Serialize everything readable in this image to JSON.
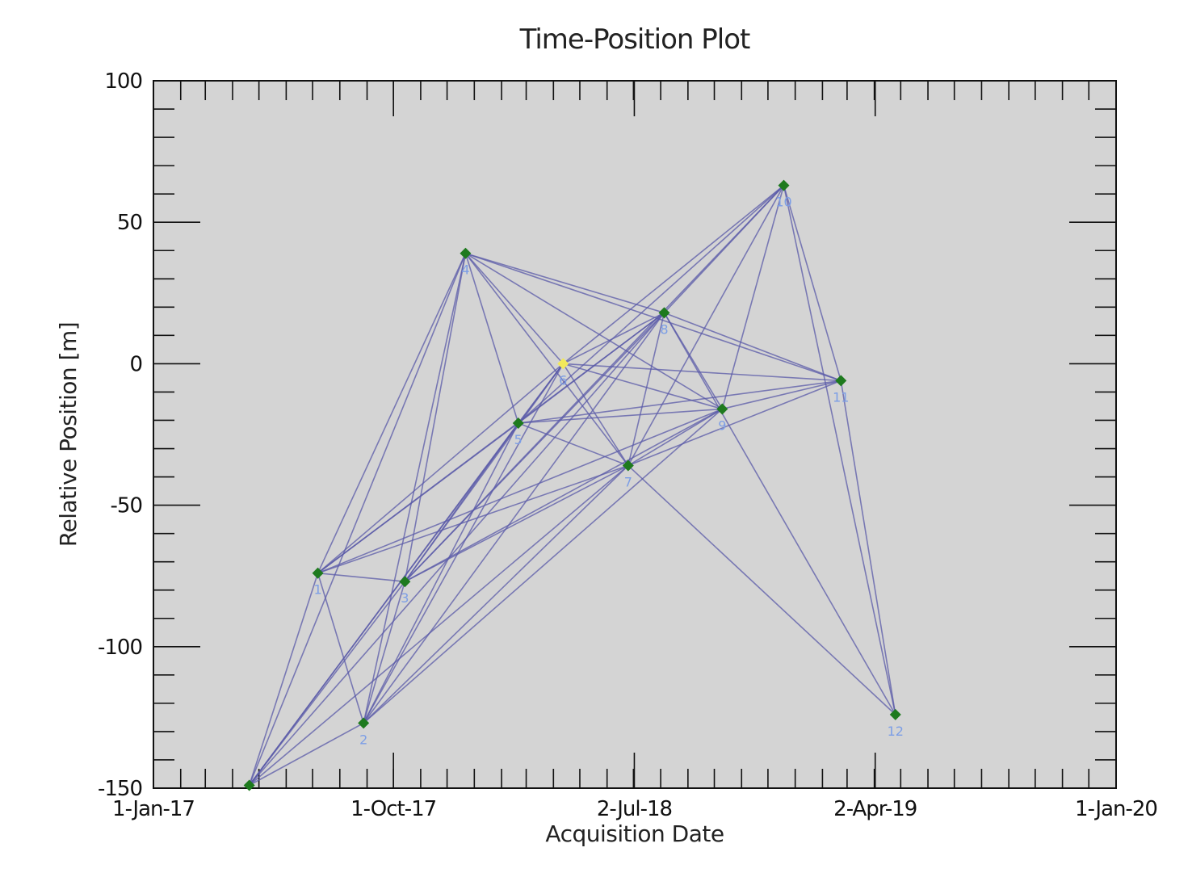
{
  "chart_data": {
    "type": "scatter",
    "title": "Time-Position Plot",
    "xlabel": "Acquisition Date",
    "ylabel": "Relative Position [m]",
    "xlim": [
      "2017-01-01",
      "2020-01-01"
    ],
    "ylim": [
      -150,
      100
    ],
    "x_ticks": [
      {
        "date": "2017-01-01",
        "label": "1-Jan-17"
      },
      {
        "date": "2017-10-01",
        "label": "1-Oct-17"
      },
      {
        "date": "2018-07-02",
        "label": "2-Jul-18"
      },
      {
        "date": "2019-04-02",
        "label": "2-Apr-19"
      },
      {
        "date": "2020-01-01",
        "label": "1-Jan-20"
      }
    ],
    "y_ticks": [
      100,
      50,
      0,
      -50,
      -100,
      -150
    ],
    "grid": false,
    "marker_color": "#1e7a1e",
    "master_color": "#f2e85a",
    "edge_color": "#5a5aa8",
    "background_color": "#d4d4d4",
    "points": [
      {
        "id": 0,
        "label": "",
        "date": "2017-04-20",
        "value": -149
      },
      {
        "id": 1,
        "label": "1",
        "date": "2017-07-07",
        "value": -74
      },
      {
        "id": 2,
        "label": "2",
        "date": "2017-08-28",
        "value": -127
      },
      {
        "id": 3,
        "label": "3",
        "date": "2017-10-14",
        "value": -77
      },
      {
        "id": 4,
        "label": "4",
        "date": "2017-12-22",
        "value": 39
      },
      {
        "id": 5,
        "label": "5",
        "date": "2018-02-20",
        "value": -21
      },
      {
        "id": 6,
        "label": "6",
        "date": "2018-04-12",
        "value": 0,
        "master": true
      },
      {
        "id": 7,
        "label": "7",
        "date": "2018-06-25",
        "value": -36
      },
      {
        "id": 8,
        "label": "8",
        "date": "2018-08-05",
        "value": 18
      },
      {
        "id": 9,
        "label": "9",
        "date": "2018-10-10",
        "value": -16
      },
      {
        "id": 10,
        "label": "10",
        "date": "2018-12-19",
        "value": 63
      },
      {
        "id": 11,
        "label": "11",
        "date": "2019-02-22",
        "value": -6
      },
      {
        "id": 12,
        "label": "12",
        "date": "2019-04-25",
        "value": -124
      }
    ],
    "connections": [
      [
        0,
        1
      ],
      [
        0,
        2
      ],
      [
        0,
        3
      ],
      [
        0,
        4
      ],
      [
        0,
        5
      ],
      [
        0,
        6
      ],
      [
        0,
        7
      ],
      [
        0,
        8
      ],
      [
        1,
        2
      ],
      [
        1,
        3
      ],
      [
        1,
        4
      ],
      [
        1,
        5
      ],
      [
        1,
        6
      ],
      [
        1,
        7
      ],
      [
        1,
        8
      ],
      [
        1,
        9
      ],
      [
        2,
        3
      ],
      [
        2,
        4
      ],
      [
        2,
        5
      ],
      [
        2,
        6
      ],
      [
        2,
        7
      ],
      [
        2,
        8
      ],
      [
        2,
        9
      ],
      [
        3,
        4
      ],
      [
        3,
        5
      ],
      [
        3,
        6
      ],
      [
        3,
        7
      ],
      [
        3,
        8
      ],
      [
        3,
        9
      ],
      [
        3,
        10
      ],
      [
        4,
        5
      ],
      [
        4,
        6
      ],
      [
        4,
        7
      ],
      [
        4,
        8
      ],
      [
        4,
        9
      ],
      [
        4,
        11
      ],
      [
        5,
        6
      ],
      [
        5,
        7
      ],
      [
        5,
        8
      ],
      [
        5,
        9
      ],
      [
        5,
        10
      ],
      [
        5,
        11
      ],
      [
        6,
        7
      ],
      [
        6,
        8
      ],
      [
        6,
        9
      ],
      [
        6,
        10
      ],
      [
        6,
        11
      ],
      [
        7,
        8
      ],
      [
        7,
        9
      ],
      [
        7,
        10
      ],
      [
        7,
        11
      ],
      [
        7,
        12
      ],
      [
        8,
        9
      ],
      [
        8,
        10
      ],
      [
        8,
        11
      ],
      [
        8,
        12
      ],
      [
        9,
        10
      ],
      [
        9,
        11
      ],
      [
        10,
        11
      ],
      [
        10,
        12
      ],
      [
        11,
        12
      ]
    ]
  }
}
